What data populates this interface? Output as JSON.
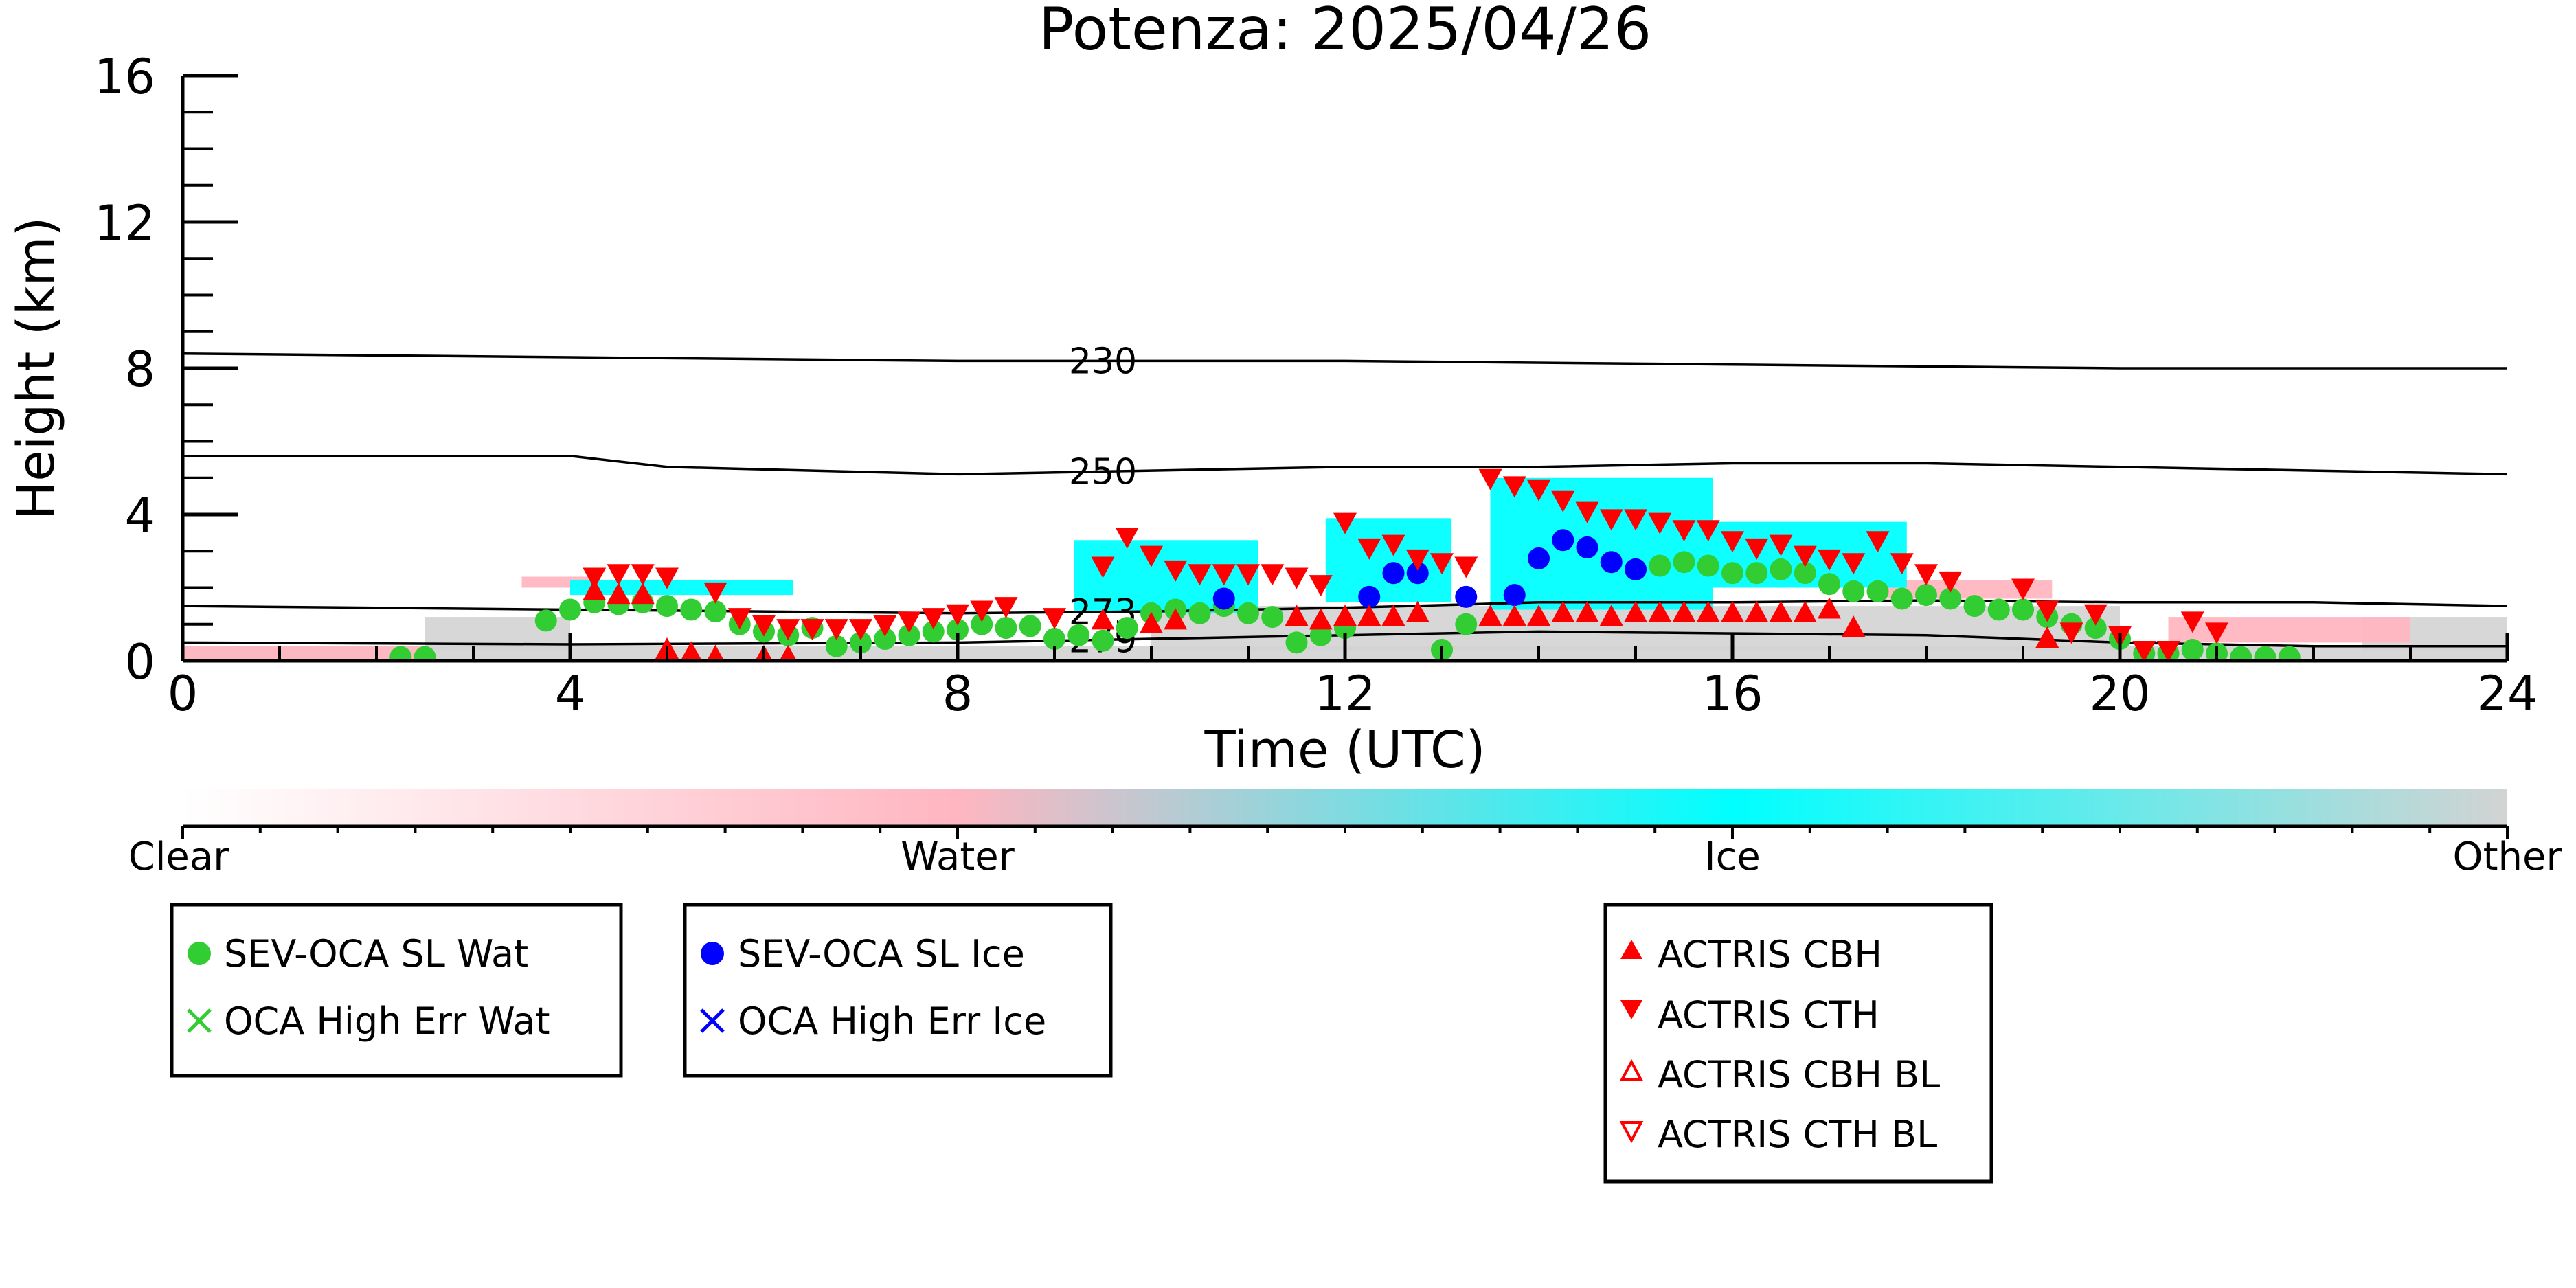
{
  "chart_data": {
    "type": "scatter",
    "title": "Potenza: 2025/04/26",
    "xlabel": "Time (UTC)",
    "ylabel": "Height (km)",
    "xlim": [
      0,
      24
    ],
    "ylim": [
      0,
      16
    ],
    "x_ticks": [
      0,
      4,
      8,
      12,
      16,
      20,
      24
    ],
    "y_ticks": [
      0,
      4,
      8,
      12,
      16
    ],
    "x_tick_labels": [
      "0",
      "4",
      "8",
      "12",
      "16",
      "20",
      "24"
    ],
    "y_tick_labels": [
      "0",
      "4",
      "8",
      "12",
      "16"
    ],
    "colorbar": {
      "labels": [
        "Clear",
        "Water",
        "Ice",
        "Other"
      ],
      "colors": [
        "#ffffff",
        "#ffb6c1",
        "#00ffff",
        "#d3d3d3"
      ]
    },
    "temperature_contours": [
      {
        "label": "230",
        "x": [
          0,
          4,
          8,
          12,
          16,
          20,
          24
        ],
        "y": [
          8.4,
          8.3,
          8.2,
          8.2,
          8.1,
          8.0,
          8.0
        ]
      },
      {
        "label": "250",
        "x": [
          0,
          4,
          5,
          8,
          10,
          12,
          14,
          16,
          18,
          20,
          22,
          24
        ],
        "y": [
          5.6,
          5.6,
          5.3,
          5.1,
          5.2,
          5.3,
          5.3,
          5.4,
          5.4,
          5.3,
          5.2,
          5.1
        ]
      },
      {
        "label": "273",
        "x": [
          0,
          4,
          8,
          10,
          12,
          14,
          16,
          18,
          20,
          22,
          24
        ],
        "y": [
          1.5,
          1.4,
          1.3,
          1.35,
          1.45,
          1.6,
          1.6,
          1.65,
          1.6,
          1.6,
          1.5
        ]
      },
      {
        "label": "279",
        "x": [
          0,
          4,
          8,
          10,
          12,
          14,
          16,
          18,
          20,
          22,
          24
        ],
        "y": [
          0.5,
          0.45,
          0.5,
          0.6,
          0.7,
          0.8,
          0.75,
          0.7,
          0.5,
          0.4,
          0.4
        ]
      }
    ],
    "target_classification": [
      {
        "class": "Ice",
        "x": [
          9.2,
          11.1
        ],
        "y": [
          1.3,
          3.3
        ]
      },
      {
        "class": "Ice",
        "x": [
          11.8,
          13.1
        ],
        "y": [
          1.6,
          3.9
        ]
      },
      {
        "class": "Ice",
        "x": [
          13.5,
          15.8
        ],
        "y": [
          1.4,
          5.0
        ]
      },
      {
        "class": "Ice",
        "x": [
          15.8,
          17.8
        ],
        "y": [
          2.0,
          3.8
        ]
      },
      {
        "class": "Ice",
        "x": [
          4.0,
          6.3
        ],
        "y": [
          1.8,
          2.2
        ]
      },
      {
        "class": "Water",
        "x": [
          3.5,
          4.2
        ],
        "y": [
          2.0,
          2.3
        ]
      },
      {
        "class": "Water",
        "x": [
          17.5,
          19.3
        ],
        "y": [
          1.7,
          2.2
        ]
      },
      {
        "class": "Water",
        "x": [
          20.5,
          23.0
        ],
        "y": [
          0.5,
          1.2
        ]
      },
      {
        "class": "Water",
        "x": [
          0.0,
          2.5
        ],
        "y": [
          0.0,
          0.4
        ]
      },
      {
        "class": "Other",
        "x": [
          0.0,
          24.0
        ],
        "y": [
          0.0,
          0.4
        ]
      },
      {
        "class": "Other",
        "x": [
          2.5,
          4.0
        ],
        "y": [
          0.3,
          1.2
        ]
      },
      {
        "class": "Other",
        "x": [
          22.5,
          24.0
        ],
        "y": [
          0.3,
          1.2
        ]
      },
      {
        "class": "Other",
        "x": [
          10.0,
          20.0
        ],
        "y": [
          0.3,
          1.5
        ]
      }
    ],
    "series": [
      {
        "name": "SEV-OCA SL Wat",
        "color": "#32cd32",
        "marker": "circle",
        "x": [
          2.25,
          2.5,
          3.75,
          4.0,
          4.25,
          4.5,
          4.75,
          5.0,
          5.25,
          5.5,
          5.75,
          6.0,
          6.25,
          6.5,
          6.75,
          7.0,
          7.25,
          7.5,
          7.75,
          8.0,
          8.25,
          8.5,
          8.75,
          9.0,
          9.25,
          9.5,
          9.75,
          10.0,
          10.25,
          10.5,
          10.75,
          11.0,
          11.25,
          11.5,
          11.75,
          12.0,
          13.0,
          13.25,
          15.0,
          15.25,
          15.5,
          15.75,
          16.0,
          16.25,
          16.5,
          16.75,
          17.0,
          17.25,
          17.5,
          17.75,
          18.0,
          18.25,
          18.5,
          18.75,
          19.0,
          19.25,
          19.5,
          19.75,
          20.0,
          20.25,
          20.5,
          20.75,
          21.0,
          21.25,
          21.5,
          21.75
        ],
        "y": [
          0.1,
          0.1,
          1.1,
          1.4,
          1.6,
          1.55,
          1.6,
          1.5,
          1.4,
          1.35,
          1.0,
          0.8,
          0.7,
          0.9,
          0.4,
          0.5,
          0.6,
          0.7,
          0.8,
          0.85,
          1.0,
          0.9,
          0.95,
          0.6,
          0.7,
          0.55,
          0.9,
          1.3,
          1.4,
          1.3,
          1.5,
          1.3,
          1.2,
          0.5,
          0.7,
          0.9,
          0.3,
          1.0,
          2.5,
          2.6,
          2.7,
          2.6,
          2.4,
          2.4,
          2.5,
          2.4,
          2.1,
          1.9,
          1.9,
          1.7,
          1.8,
          1.7,
          1.5,
          1.4,
          1.4,
          1.2,
          1.0,
          0.9,
          0.6,
          0.2,
          0.2,
          0.3,
          0.2,
          0.1,
          0.1,
          0.1
        ]
      },
      {
        "name": "SEV-OCA SL Ice",
        "color": "#0000ff",
        "marker": "circle",
        "x": [
          10.75,
          12.25,
          12.5,
          12.75,
          13.25,
          13.75,
          14.0,
          14.25,
          14.5,
          14.75,
          15.0
        ],
        "y": [
          1.7,
          1.75,
          2.4,
          2.4,
          1.75,
          1.8,
          2.8,
          3.3,
          3.1,
          2.7,
          2.5
        ]
      },
      {
        "name": "OCA High Err Wat",
        "color": "#32cd32",
        "marker": "x",
        "x": [],
        "y": []
      },
      {
        "name": "OCA High Err Ice",
        "color": "#0000ff",
        "marker": "x",
        "x": [],
        "y": []
      },
      {
        "name": "ACTRIS CBH",
        "color": "#ff0000",
        "marker": "triangle-up",
        "x": [
          4.25,
          4.5,
          4.75,
          5.0,
          5.25,
          5.5,
          6.0,
          6.25,
          9.5,
          10.0,
          10.25,
          11.5,
          11.75,
          12.0,
          12.25,
          12.5,
          12.75,
          13.5,
          13.75,
          14.0,
          14.25,
          14.5,
          14.75,
          15.0,
          15.25,
          15.5,
          15.75,
          16.0,
          16.25,
          16.5,
          16.75,
          17.0,
          17.25,
          19.25
        ],
        "y": [
          1.9,
          1.8,
          1.8,
          0.3,
          0.2,
          0.1,
          0.1,
          0.1,
          1.1,
          1.0,
          1.1,
          1.2,
          1.1,
          1.2,
          1.2,
          1.2,
          1.3,
          1.2,
          1.2,
          1.2,
          1.3,
          1.3,
          1.2,
          1.3,
          1.3,
          1.3,
          1.3,
          1.3,
          1.3,
          1.3,
          1.3,
          1.4,
          0.9,
          0.6
        ]
      },
      {
        "name": "ACTRIS CTH",
        "color": "#ff0000",
        "marker": "triangle-down",
        "x": [
          4.25,
          4.5,
          4.75,
          5.0,
          5.5,
          5.75,
          6.0,
          6.25,
          6.5,
          6.75,
          7.0,
          7.25,
          7.5,
          7.75,
          8.0,
          8.25,
          8.5,
          9.0,
          9.5,
          9.75,
          10.0,
          10.25,
          10.5,
          10.75,
          11.0,
          11.25,
          11.5,
          11.75,
          12.0,
          12.25,
          12.5,
          12.75,
          13.0,
          13.25,
          13.5,
          13.75,
          14.0,
          14.25,
          14.5,
          14.75,
          15.0,
          15.25,
          15.5,
          15.75,
          16.0,
          16.25,
          16.5,
          16.75,
          17.0,
          17.25,
          17.5,
          17.75,
          18.0,
          18.25,
          19.0,
          19.25,
          19.5,
          19.75,
          20.0,
          20.25,
          20.5,
          20.75,
          21.0
        ],
        "y": [
          2.3,
          2.4,
          2.4,
          2.3,
          1.9,
          1.2,
          1.0,
          0.9,
          0.9,
          0.9,
          0.9,
          1.0,
          1.1,
          1.2,
          1.3,
          1.4,
          1.5,
          1.2,
          2.6,
          3.4,
          2.9,
          2.5,
          2.4,
          2.4,
          2.4,
          2.4,
          2.3,
          2.1,
          3.8,
          3.1,
          3.2,
          2.8,
          2.7,
          2.6,
          5.0,
          4.8,
          4.7,
          4.4,
          4.1,
          3.9,
          3.9,
          3.8,
          3.6,
          3.6,
          3.3,
          3.1,
          3.2,
          2.9,
          2.8,
          2.7,
          3.3,
          2.7,
          2.4,
          2.2,
          2.0,
          1.4,
          0.8,
          1.3,
          0.7,
          0.3,
          0.3,
          1.1,
          0.8
        ]
      },
      {
        "name": "ACTRIS CBH BL",
        "color": "#ff0000",
        "marker": "triangle-up-open",
        "x": [],
        "y": []
      },
      {
        "name": "ACTRIS CTH BL",
        "color": "#ff0000",
        "marker": "triangle-down-open",
        "x": [],
        "y": []
      }
    ],
    "legend_groups": [
      [
        "SEV-OCA SL Wat",
        "OCA High Err Wat"
      ],
      [
        "SEV-OCA SL Ice",
        "OCA High Err Ice"
      ],
      [
        "ACTRIS CBH",
        "ACTRIS CTH",
        "ACTRIS CBH BL",
        "ACTRIS CTH BL"
      ]
    ]
  }
}
